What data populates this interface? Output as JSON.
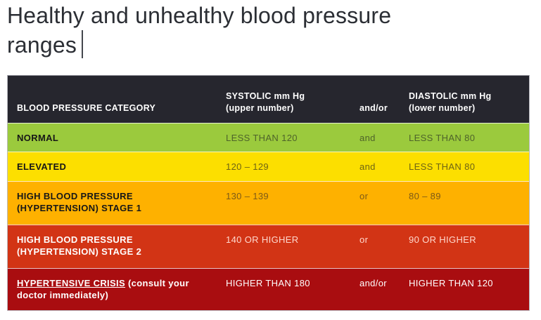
{
  "title": {
    "full": "Healthy and unhealthy blood pressure ranges",
    "line1": "Healthy and unhealthy blood pressure",
    "line2": "ranges"
  },
  "colors": {
    "title_text": "#2b2e34",
    "header_bg": "#26262e",
    "header_text": "#ffffff",
    "normal_bg": "#9bca3d",
    "elevated_bg": "#fcdf00",
    "stage1_bg": "#feb100",
    "stage2_bg": "#d23415",
    "crisis_bg": "#a90d10"
  },
  "chart_data": {
    "type": "table",
    "title": "Healthy and unhealthy blood pressure ranges",
    "columns": [
      "BLOOD PRESSURE CATEGORY",
      "SYSTOLIC mm Hg (upper number)",
      "and/or",
      "DIASTOLIC mm Hg (lower number)"
    ],
    "rows": [
      [
        "NORMAL",
        "LESS THAN 120",
        "and",
        "LESS THAN 80"
      ],
      [
        "ELEVATED",
        "120 – 129",
        "and",
        "LESS THAN 80"
      ],
      [
        "HIGH BLOOD PRESSURE (HYPERTENSION) STAGE 1",
        "130 – 139",
        "or",
        "80 – 89"
      ],
      [
        "HIGH BLOOD PRESSURE (HYPERTENSION) STAGE 2",
        "140 OR HIGHER",
        "or",
        "90 OR HIGHER"
      ],
      [
        "HYPERTENSIVE CRISIS (consult your doctor immediately)",
        "HIGHER THAN 180",
        "and/or",
        "HIGHER THAN 120"
      ]
    ]
  },
  "table": {
    "header": {
      "category": "BLOOD PRESSURE CATEGORY",
      "systolic_title": "SYSTOLIC mm Hg",
      "systolic_sub": "(upper number)",
      "connector": "and/or",
      "diastolic_title": "DIASTOLIC mm Hg",
      "diastolic_sub": "(lower number)"
    },
    "rows": [
      {
        "category": "NORMAL",
        "systolic": "LESS THAN 120",
        "connector": "and",
        "diastolic": "LESS THAN 80",
        "bg_color": "#9bca3d",
        "value_text_color": "#4e632a"
      },
      {
        "category": "ELEVATED",
        "systolic": "120 – 129",
        "connector": "and",
        "diastolic": "LESS THAN 80",
        "bg_color": "#fcdf00",
        "value_text_color": "#6e6414"
      },
      {
        "category": "HIGH BLOOD PRESSURE (HYPERTENSION) STAGE 1",
        "systolic": "130 – 139",
        "connector": "or",
        "diastolic": "80 – 89",
        "bg_color": "#feb100",
        "value_text_color": "#7d5a17"
      },
      {
        "category": "HIGH BLOOD PRESSURE (HYPERTENSION) STAGE 2",
        "systolic": "140 OR HIGHER",
        "connector": "or",
        "diastolic": "90 OR HIGHER",
        "bg_color": "#d23415",
        "value_text_color": "#ffd8cd"
      },
      {
        "category_main": "HYPERTENSIVE CRISIS",
        "category_note": " (consult your doctor immediately)",
        "systolic": "HIGHER THAN 180",
        "connector": "and/or",
        "diastolic": "HIGHER THAN 120",
        "bg_color": "#a90d10",
        "value_text_color": "#ffffff"
      }
    ]
  }
}
